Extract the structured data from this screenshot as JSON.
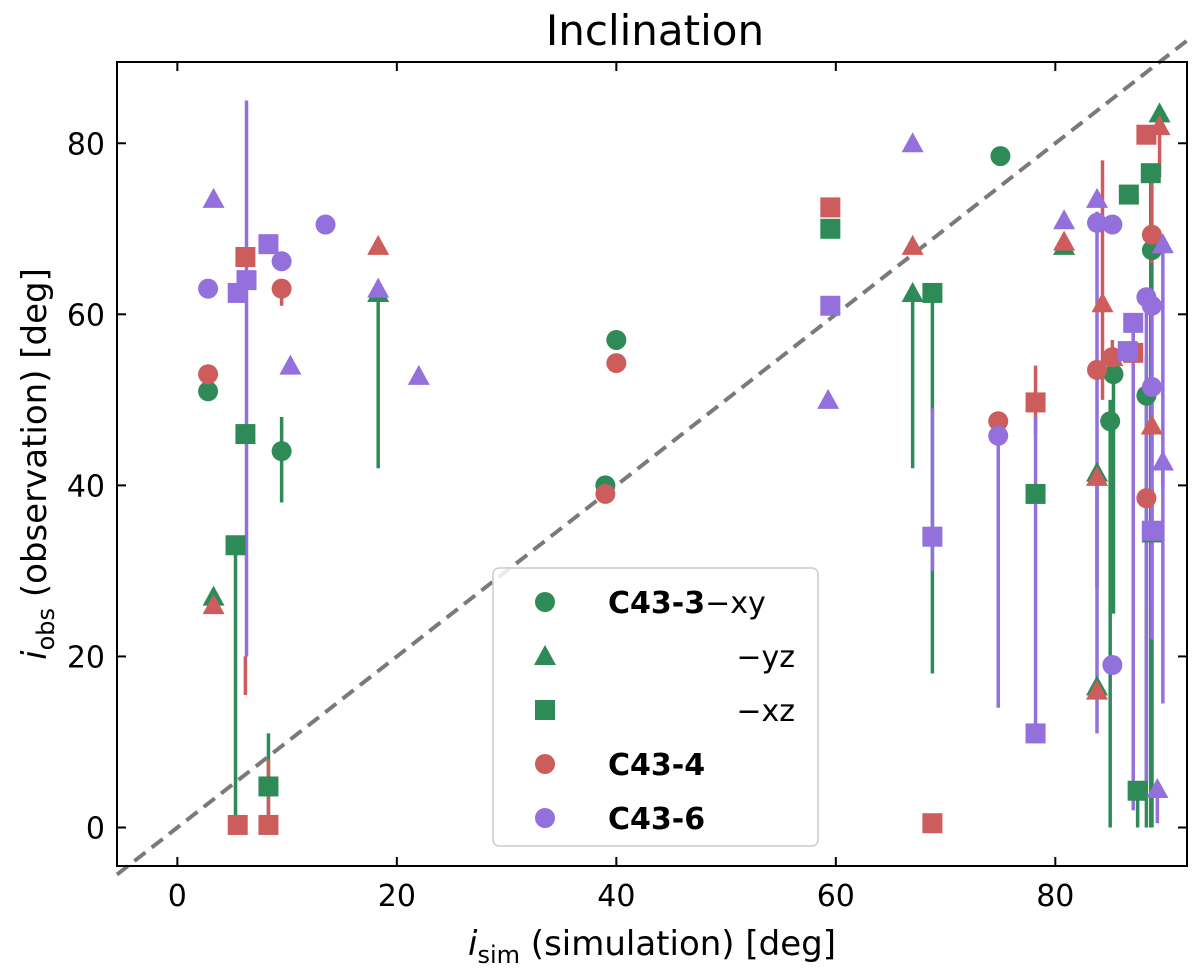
{
  "chart_data": {
    "type": "scatter",
    "title": "Inclination",
    "xlabel": {
      "italic": "i",
      "sub": "sim",
      "rest": " (simulation) [deg]"
    },
    "ylabel": {
      "italic": "i",
      "sub": "obs",
      "rest": " (observation) [deg]"
    },
    "xlim": [
      -5.5,
      92
    ],
    "ylim": [
      -4.5,
      89.5
    ],
    "xticks": [
      0,
      20,
      40,
      60,
      80
    ],
    "yticks": [
      0,
      20,
      40,
      60,
      80
    ],
    "reference_line": {
      "label": "1:1",
      "x": [
        -5.5,
        92
      ],
      "y": [
        -5.5,
        92
      ],
      "style": "dashed",
      "color": "#7a7a7a"
    },
    "colors": {
      "C43-3": "#2e8b57",
      "C43-4": "#cd5c5c",
      "C43-6": "#9370db"
    },
    "legend": {
      "position": "lower-center",
      "entries": [
        {
          "marker": "circle",
          "color_key": "C43-3",
          "bold": "C43-3",
          "suffix": "−xy"
        },
        {
          "marker": "triangle",
          "color_key": "C43-3",
          "bold": "",
          "suffix": "−yz"
        },
        {
          "marker": "square",
          "color_key": "C43-3",
          "bold": "",
          "suffix": "−xz"
        },
        {
          "marker": "circle",
          "color_key": "C43-4",
          "bold": "C43-4",
          "suffix": ""
        },
        {
          "marker": "circle",
          "color_key": "C43-6",
          "bold": "C43-6",
          "suffix": ""
        }
      ]
    },
    "series": [
      {
        "name": "C43-3 xy",
        "color_key": "C43-3",
        "marker": "circle",
        "points": [
          {
            "x": 2.8,
            "y": 51
          },
          {
            "x": 9.5,
            "y": 44,
            "lo": 38,
            "hi": 48
          },
          {
            "x": 39,
            "y": 40
          },
          {
            "x": 40,
            "y": 57
          },
          {
            "x": 75,
            "y": 78.5
          },
          {
            "x": 85,
            "y": 47.5,
            "lo": 0,
            "hi": 50
          },
          {
            "x": 85.3,
            "y": 53,
            "lo": 25,
            "hi": 56
          },
          {
            "x": 88.3,
            "y": 50.5,
            "lo": 0,
            "hi": 55
          },
          {
            "x": 88.8,
            "y": 67.5,
            "lo": 0,
            "hi": 70
          }
        ]
      },
      {
        "name": "C43-3 yz",
        "color_key": "C43-3",
        "marker": "triangle",
        "points": [
          {
            "x": 3.3,
            "y": 27
          },
          {
            "x": 18.3,
            "y": 62.5,
            "lo": 42,
            "hi": 63
          },
          {
            "x": 67,
            "y": 62.5,
            "lo": 42,
            "hi": 63
          },
          {
            "x": 80.8,
            "y": 68
          },
          {
            "x": 83.8,
            "y": 16.5
          },
          {
            "x": 83.8,
            "y": 41.5,
            "lo": 28,
            "hi": 42
          },
          {
            "x": 89.5,
            "y": 83.5
          }
        ]
      },
      {
        "name": "C43-3 xz",
        "color_key": "C43-3",
        "marker": "square",
        "points": [
          {
            "x": 5.3,
            "y": 33,
            "lo": 0,
            "hi": 34
          },
          {
            "x": 6.2,
            "y": 46
          },
          {
            "x": 8.3,
            "y": 4.8,
            "lo": 0,
            "hi": 11
          },
          {
            "x": 59.5,
            "y": 70
          },
          {
            "x": 68.8,
            "y": 62.5,
            "lo": 18,
            "hi": 63
          },
          {
            "x": 78.2,
            "y": 39
          },
          {
            "x": 86.7,
            "y": 74
          },
          {
            "x": 87.5,
            "y": 4.3,
            "lo": 0,
            "hi": 5
          },
          {
            "x": 88.7,
            "y": 76.5,
            "lo": 0,
            "hi": 77
          },
          {
            "x": 88.8,
            "y": 34.5,
            "lo": 0,
            "hi": 40
          }
        ]
      },
      {
        "name": "C43-4",
        "color_key": "C43-4",
        "marker": "circle",
        "points": [
          {
            "x": 2.8,
            "y": 53
          },
          {
            "x": 9.5,
            "y": 63,
            "lo": 61,
            "hi": 64
          },
          {
            "x": 39,
            "y": 39
          },
          {
            "x": 40,
            "y": 54.3
          },
          {
            "x": 74.8,
            "y": 47.5
          },
          {
            "x": 83.8,
            "y": 53.5
          },
          {
            "x": 85.2,
            "y": 55
          },
          {
            "x": 88.3,
            "y": 38.5
          },
          {
            "x": 88.8,
            "y": 69.3,
            "lo": 66,
            "hi": 76
          }
        ]
      },
      {
        "name": "C43-4 tri",
        "color_key": "C43-4",
        "marker": "triangle",
        "points": [
          {
            "x": 3.3,
            "y": 26
          },
          {
            "x": 18.3,
            "y": 68
          },
          {
            "x": 67,
            "y": 68
          },
          {
            "x": 80.8,
            "y": 68.5
          },
          {
            "x": 83.8,
            "y": 16
          },
          {
            "x": 83.8,
            "y": 41
          },
          {
            "x": 84.3,
            "y": 61.3,
            "lo": 50,
            "hi": 78
          },
          {
            "x": 85.2,
            "y": 55,
            "lo": 52,
            "hi": 57
          },
          {
            "x": 88.8,
            "y": 47
          },
          {
            "x": 89.5,
            "y": 82,
            "lo": 76,
            "hi": 83
          }
        ]
      },
      {
        "name": "C43-4 sq",
        "color_key": "C43-4",
        "marker": "square",
        "points": [
          {
            "x": 5.5,
            "y": 0.3
          },
          {
            "x": 6.2,
            "y": 66.7,
            "lo": 15.5,
            "hi": 20
          },
          {
            "x": 8.3,
            "y": 0.3,
            "lo": 0,
            "hi": 8
          },
          {
            "x": 59.5,
            "y": 72.5
          },
          {
            "x": 68.8,
            "y": 0.5
          },
          {
            "x": 78.2,
            "y": 49.7,
            "lo": 46,
            "hi": 54
          },
          {
            "x": 87.1,
            "y": 55.5
          },
          {
            "x": 88.3,
            "y": 81
          }
        ]
      },
      {
        "name": "C43-6",
        "color_key": "C43-6",
        "marker": "circle",
        "points": [
          {
            "x": 2.8,
            "y": 63
          },
          {
            "x": 9.5,
            "y": 66.2
          },
          {
            "x": 13.5,
            "y": 70.5
          },
          {
            "x": 74.8,
            "y": 45.8,
            "lo": 14,
            "hi": 48
          },
          {
            "x": 83.8,
            "y": 70.7,
            "lo": 11,
            "hi": 72
          },
          {
            "x": 85.2,
            "y": 70.5
          },
          {
            "x": 85.2,
            "y": 19
          },
          {
            "x": 88.3,
            "y": 62,
            "lo": 5,
            "hi": 63
          },
          {
            "x": 88.8,
            "y": 61,
            "lo": 26,
            "hi": 62
          },
          {
            "x": 88.8,
            "y": 51.5,
            "lo": 22,
            "hi": 53
          }
        ]
      },
      {
        "name": "C43-6 tri",
        "color_key": "C43-6",
        "marker": "triangle",
        "points": [
          {
            "x": 3.3,
            "y": 73.5
          },
          {
            "x": 10.3,
            "y": 54
          },
          {
            "x": 18.3,
            "y": 63
          },
          {
            "x": 22,
            "y": 52.8
          },
          {
            "x": 59.3,
            "y": 50
          },
          {
            "x": 67,
            "y": 80
          },
          {
            "x": 80.8,
            "y": 71
          },
          {
            "x": 83.8,
            "y": 73.5
          },
          {
            "x": 89.3,
            "y": 4.5,
            "lo": 0.5,
            "hi": 5
          },
          {
            "x": 89.8,
            "y": 42.8,
            "lo": 14.5,
            "hi": 44
          },
          {
            "x": 89.8,
            "y": 68.2,
            "lo": 40,
            "hi": 69
          }
        ]
      },
      {
        "name": "C43-6 sq",
        "color_key": "C43-6",
        "marker": "square",
        "points": [
          {
            "x": 5.5,
            "y": 62.5
          },
          {
            "x": 6.3,
            "y": 64,
            "lo": 20,
            "hi": 85
          },
          {
            "x": 8.3,
            "y": 68.2
          },
          {
            "x": 59.5,
            "y": 61
          },
          {
            "x": 68.8,
            "y": 34,
            "lo": 30,
            "hi": 49
          },
          {
            "x": 78.2,
            "y": 11,
            "lo": 10,
            "hi": 48
          },
          {
            "x": 87.1,
            "y": 59,
            "lo": 2,
            "hi": 60
          },
          {
            "x": 86.6,
            "y": 55.7
          },
          {
            "x": 88.8,
            "y": 34.7
          }
        ]
      }
    ]
  }
}
